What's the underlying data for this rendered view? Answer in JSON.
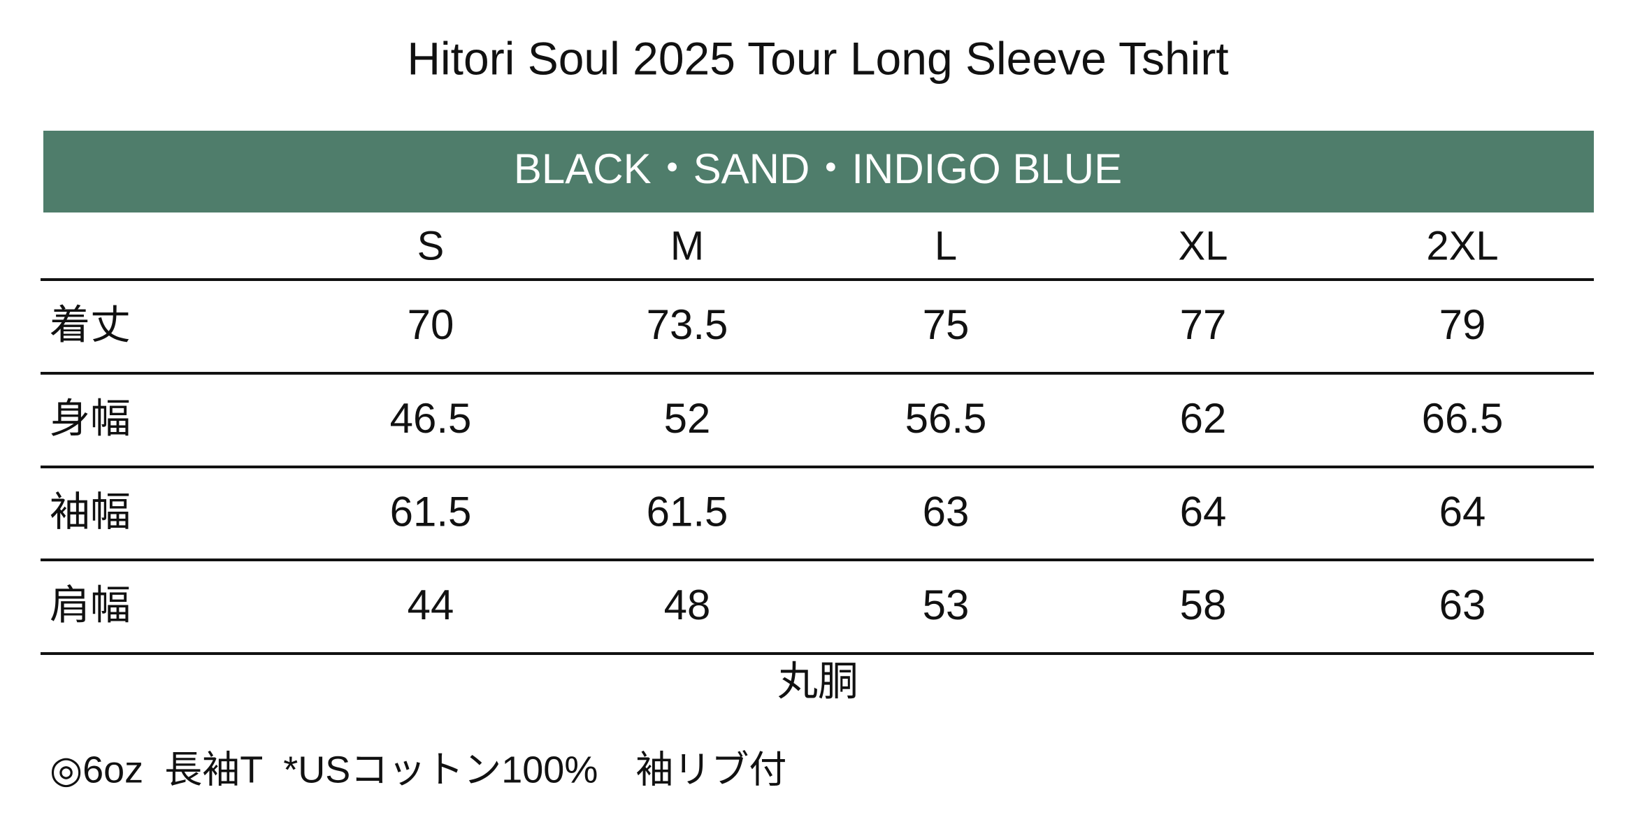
{
  "title": "Hitori Soul 2025 Tour Long Sleeve Tshirt",
  "colors": "BLACK・SAND・INDIGO BLUE",
  "table": {
    "columns": [
      "S",
      "M",
      "L",
      "XL",
      "2XL"
    ],
    "rows": [
      {
        "label": "着丈",
        "cells": [
          70,
          73.5,
          75,
          77,
          79
        ]
      },
      {
        "label": "身幅",
        "cells": [
          46.5,
          52,
          56.5,
          62,
          66.5
        ]
      },
      {
        "label": "袖幅",
        "cells": [
          61.5,
          61.5,
          63,
          64,
          64
        ]
      },
      {
        "label": "肩幅",
        "cells": [
          44,
          48,
          53,
          58,
          63
        ]
      }
    ]
  },
  "footer": "丸胴",
  "note": "◎6oz  長袖T  *USコットン100%　袖リブ付"
}
